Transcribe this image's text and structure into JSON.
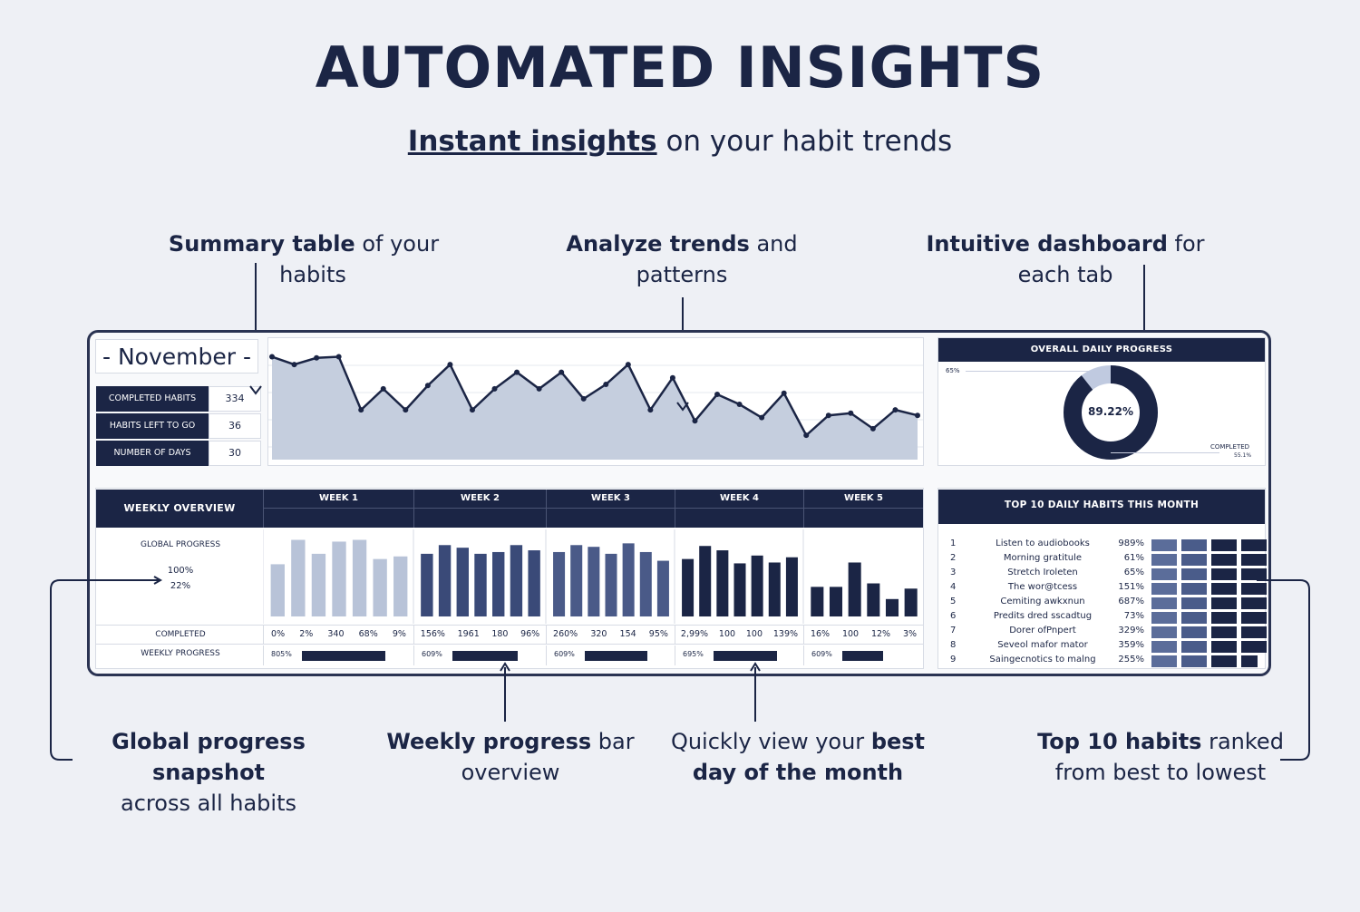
{
  "title": "AUTOMATED INSIGHTS",
  "subtitle": {
    "emphasis": "Instant insights",
    "rest": "on your habit trends"
  },
  "callouts": {
    "summary": {
      "bold": "Summary table",
      "rest1": " of your",
      "rest2": "habits"
    },
    "trends": {
      "bold": "Analyze trends",
      "rest1": " and",
      "rest2": "patterns"
    },
    "dashboard": {
      "bold": "Intuitive dashboard",
      "rest1": " for",
      "rest2": "each tab"
    },
    "global": {
      "bold": "Global progress snapshot",
      "rest2": "across all habits"
    },
    "weekly": {
      "bold": "Weekly progress",
      "rest1": " bar",
      "rest2": "overview"
    },
    "bestday": {
      "pre": "Quickly view your ",
      "bold1": "best",
      "bold2": "day of the month"
    },
    "top10": {
      "bold": "Top 10 habits",
      "rest1": " ranked",
      "rest2": "from best to lowest"
    }
  },
  "dashboard": {
    "month": "- November -",
    "summary": [
      {
        "label": "COMPLETED HABITS",
        "value": "334"
      },
      {
        "label": "HABITS LEFT TO GO",
        "value": "36"
      },
      {
        "label": "NUMBER OF DAYS",
        "value": "30"
      }
    ],
    "daily_trend": [
      0.93,
      0.86,
      0.92,
      0.93,
      0.45,
      0.64,
      0.45,
      0.67,
      0.86,
      0.45,
      0.64,
      0.79,
      0.64,
      0.79,
      0.55,
      0.68,
      0.86,
      0.45,
      0.74,
      0.35,
      0.59,
      0.5,
      0.38,
      0.6,
      0.22,
      0.4,
      0.42,
      0.28,
      0.45,
      0.4
    ],
    "overall": {
      "header": "OVERALL DAILY PROGRESS",
      "percent_label": "89.22%",
      "value": 89.22,
      "left_tick": "65%",
      "completed_label": "COMPLETED",
      "completed_value": "55.1%"
    },
    "weekly": {
      "header": "WEEKLY OVERVIEW",
      "global_label": "GLOBAL PROGRESS",
      "global_values": [
        "100%",
        "22%"
      ],
      "completed_label": "COMPLETED",
      "weekly_progress_label": "WEEKLY PROGRESS",
      "weeks": [
        {
          "name": "WEEK 1",
          "bars": [
            0.6,
            0.88,
            0.72,
            0.86,
            0.88,
            0.66,
            0.69
          ],
          "completed": [
            "0%",
            "2%",
            "340",
            "68%",
            "9%"
          ],
          "progress_label": "805%",
          "progress": 0.82,
          "color": "#b8c3d8"
        },
        {
          "name": "WEEK 2",
          "bars": [
            0.72,
            0.82,
            0.79,
            0.72,
            0.74,
            0.82,
            0.76
          ],
          "completed": [
            "156%",
            "1961",
            "180",
            "96%"
          ],
          "progress_label": "609%",
          "progress": 0.78,
          "color": "#3a4a78"
        },
        {
          "name": "WEEK 3",
          "bars": [
            0.74,
            0.82,
            0.8,
            0.72,
            0.84,
            0.74,
            0.64
          ],
          "completed": [
            "260%",
            "320",
            "154",
            "95%"
          ],
          "progress_label": "609%",
          "progress": 0.78,
          "color": "#4a5a88"
        },
        {
          "name": "WEEK 4",
          "bars": [
            0.66,
            0.81,
            0.76,
            0.61,
            0.7,
            0.62,
            0.68
          ],
          "completed": [
            "2,99%",
            "100",
            "100",
            "139%"
          ],
          "progress_label": "695%",
          "progress": 0.8,
          "color": "#1b2545"
        },
        {
          "name": "WEEK 5",
          "bars": [
            0.34,
            0.34,
            0.62,
            0.38,
            0.2,
            0.32
          ],
          "completed": [
            "16%",
            "100",
            "12%",
            "3%"
          ],
          "progress_label": "609%",
          "progress": 0.58,
          "color": "#1b2545"
        }
      ]
    },
    "top10": {
      "header": "TOP 10 DAILY HABITS THIS MONTH",
      "rows": [
        {
          "rank": "1",
          "habit": "Listen to audiobooks",
          "pct": "989%"
        },
        {
          "rank": "2",
          "habit": "Morning gratitule",
          "pct": "61%"
        },
        {
          "rank": "3",
          "habit": "Stretch Iroleten",
          "pct": "65%"
        },
        {
          "rank": "4",
          "habit": "The wor@tcess",
          "pct": "151%"
        },
        {
          "rank": "5",
          "habit": "Cemiting awkxnun",
          "pct": "687%"
        },
        {
          "rank": "6",
          "habit": "Predits dred sscadtug",
          "pct": "73%"
        },
        {
          "rank": "7",
          "habit": "Dorer ofPnpert",
          "pct": "329%"
        },
        {
          "rank": "8",
          "habit": "Seveol mafor mator",
          "pct": "359%"
        },
        {
          "rank": "9",
          "habit": "Saingecnotics to malng",
          "pct": "255%"
        }
      ]
    }
  }
}
